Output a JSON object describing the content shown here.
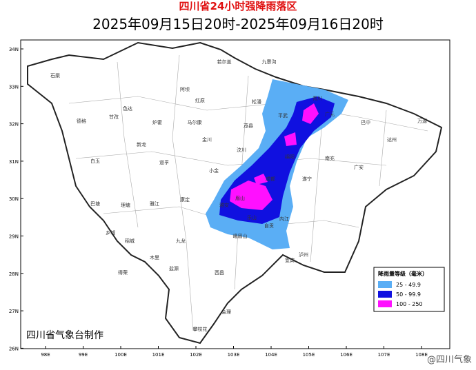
{
  "header": {
    "title": "四川省24小时强降雨落区",
    "subtitle": "2025年09月15日20时-2025年09月16日20时"
  },
  "axes": {
    "x_ticks": [
      "98E",
      "99E",
      "100E",
      "101E",
      "102E",
      "103E",
      "104E",
      "105E",
      "106E",
      "107E",
      "108E"
    ],
    "y_ticks": [
      "34N",
      "33N",
      "32N",
      "31N",
      "30N",
      "29N",
      "28N",
      "27N",
      "26N"
    ]
  },
  "legend": {
    "title": "降雨量等级（毫米）",
    "items": [
      {
        "label": "25 - 49.9",
        "color": "#5aaef5"
      },
      {
        "label": "50 - 99.9",
        "color": "#1010e0"
      },
      {
        "label": "100 - 250",
        "color": "#ff10ff"
      }
    ]
  },
  "places": [
    "石渠",
    "色达",
    "德格",
    "甘孜",
    "白玉",
    "巴塘",
    "理塘",
    "乡城",
    "稻城",
    "得荣",
    "新龙",
    "炉霍",
    "道孚",
    "雅江",
    "康定",
    "九龙",
    "木里",
    "盐源",
    "西昌",
    "会理",
    "若尔盖",
    "红原",
    "阿坝",
    "马尔康",
    "金川",
    "小金",
    "汶川",
    "茂县",
    "松潘",
    "九寨沟",
    "平武",
    "青川",
    "广元",
    "绵阳",
    "成都",
    "雅安",
    "乐山",
    "眉山",
    "宜宾",
    "泸州",
    "南充",
    "达州",
    "巴中",
    "万源",
    "内江",
    "自贡",
    "遂宁",
    "广安",
    "峨眉山",
    "攀枝花"
  ],
  "credit": "四川省气象台制作",
  "watermark": "@四川气象"
}
